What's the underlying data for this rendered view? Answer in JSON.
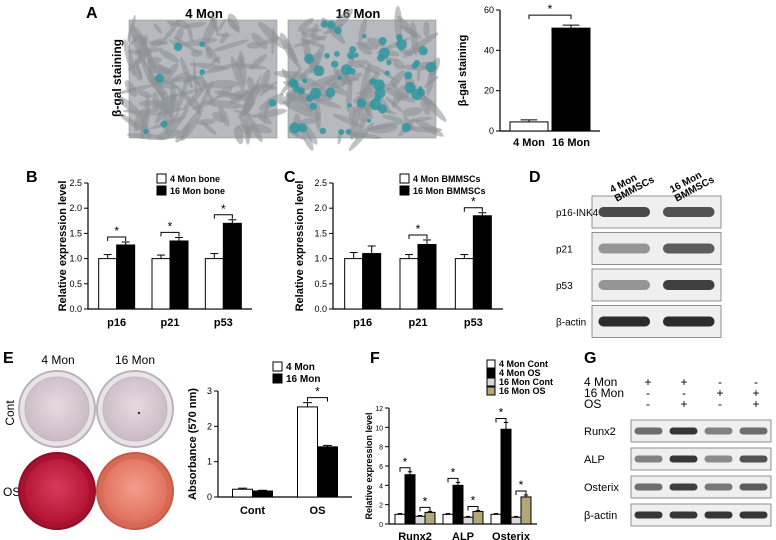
{
  "panels": {
    "A": {
      "letter": "A",
      "row_label": "β-gal staining",
      "image_labels": [
        "4 Mon",
        "16 Mon"
      ],
      "colors": {
        "micrograph_bg": "#b6b9bd",
        "cell": "#8d9296",
        "stain": "#2f97a0"
      }
    },
    "B": {
      "letter": "B"
    },
    "C": {
      "letter": "C"
    },
    "D": {
      "letter": "D",
      "lanes": [
        "4 Mon BMMSCs",
        "16 Mon BMMSCs"
      ],
      "blots": [
        {
          "label": "p16-INK4",
          "intensity": [
            0.75,
            0.7
          ]
        },
        {
          "label": "p21",
          "intensity": [
            0.35,
            0.65
          ]
        },
        {
          "label": "p53",
          "intensity": [
            0.35,
            0.8
          ]
        },
        {
          "label": "β-actin",
          "intensity": [
            0.9,
            0.9
          ]
        }
      ]
    },
    "E": {
      "letter": "E",
      "col_labels": [
        "4 Mon",
        "16 Mon"
      ],
      "row_labels": [
        "Cont",
        "OS"
      ],
      "colors": {
        "cont_well": "#d9ccd6",
        "os_4mon_well": "#c91e44",
        "os_16mon_well": "#e9856f"
      }
    },
    "F": {
      "letter": "F"
    },
    "G": {
      "letter": "G",
      "conditions": [
        {
          "label": "4 Mon",
          "signs": [
            "+",
            "+",
            "-",
            "-"
          ]
        },
        {
          "label": "16 Mon",
          "signs": [
            "-",
            "-",
            "+",
            "+"
          ]
        },
        {
          "label": "OS",
          "signs": [
            "-",
            "+",
            "-",
            "+"
          ]
        }
      ],
      "blots": [
        {
          "label": "Runx2",
          "intensity": [
            0.55,
            0.85,
            0.45,
            0.55
          ]
        },
        {
          "label": "ALP",
          "intensity": [
            0.45,
            0.85,
            0.4,
            0.7
          ]
        },
        {
          "label": "Osterix",
          "intensity": [
            0.55,
            0.8,
            0.5,
            0.65
          ]
        },
        {
          "label": "β-actin",
          "intensity": [
            0.85,
            0.85,
            0.85,
            0.85
          ]
        }
      ]
    }
  },
  "chart_data": [
    {
      "id": "A",
      "type": "bar",
      "categories": [
        "4 Mon",
        "16 Mon"
      ],
      "values": [
        4.5,
        51
      ],
      "errors": [
        1,
        1.5
      ],
      "colors": [
        "#ffffff",
        "#000000"
      ],
      "ylabel": "β-gal staining",
      "ylim": [
        0,
        60
      ],
      "yticks": [
        0,
        20,
        40,
        60
      ],
      "significance": [
        {
          "a": 0,
          "b": 1,
          "label": "*"
        }
      ]
    },
    {
      "id": "B",
      "type": "bar",
      "categories": [
        "p16",
        "p21",
        "p53"
      ],
      "series": [
        {
          "name": "4 Mon  bone",
          "color": "#ffffff",
          "values": [
            1.0,
            1.0,
            1.0
          ],
          "errors": [
            0.08,
            0.07,
            0.1
          ]
        },
        {
          "name": "16 Mon bone",
          "color": "#000000",
          "values": [
            1.27,
            1.35,
            1.7
          ],
          "errors": [
            0.06,
            0.07,
            0.07
          ]
        }
      ],
      "ylabel": "Relative expression level",
      "ylim": [
        0,
        2.5
      ],
      "yticks": [
        0.0,
        0.5,
        1.0,
        1.5,
        2.0,
        2.5
      ],
      "significance": [
        {
          "group": 0,
          "label": "*"
        },
        {
          "group": 1,
          "label": "*"
        },
        {
          "group": 2,
          "label": "*"
        }
      ]
    },
    {
      "id": "C",
      "type": "bar",
      "categories": [
        "p16",
        "p21",
        "p53"
      ],
      "series": [
        {
          "name": "4 Mon BMMSCs",
          "color": "#ffffff",
          "values": [
            1.0,
            1.0,
            1.0
          ],
          "errors": [
            0.12,
            0.08,
            0.08
          ]
        },
        {
          "name": "16 Mon BMMSCs",
          "color": "#000000",
          "values": [
            1.1,
            1.28,
            1.85
          ],
          "errors": [
            0.15,
            0.09,
            0.06
          ]
        }
      ],
      "ylabel": "Relative expression level",
      "ylim": [
        0,
        2.5
      ],
      "yticks": [
        0.0,
        0.5,
        1.0,
        1.5,
        2.0,
        2.5
      ],
      "significance": [
        {
          "group": 1,
          "label": "*"
        },
        {
          "group": 2,
          "label": "*"
        }
      ]
    },
    {
      "id": "E",
      "type": "bar",
      "categories": [
        "Cont",
        "OS"
      ],
      "series": [
        {
          "name": "4 Mon",
          "color": "#ffffff",
          "values": [
            0.22,
            2.55
          ],
          "errors": [
            0.03,
            0.12
          ]
        },
        {
          "name": "16 Mon",
          "color": "#000000",
          "values": [
            0.17,
            1.42
          ],
          "errors": [
            0.02,
            0.04
          ]
        }
      ],
      "ylabel": "Absorbance (570 nm)",
      "ylim": [
        0,
        3
      ],
      "yticks": [
        0,
        1,
        2,
        3
      ],
      "significance": [
        {
          "group": 1,
          "label": "*"
        }
      ]
    },
    {
      "id": "F",
      "type": "bar",
      "categories": [
        "Runx2",
        "ALP",
        "Osterix"
      ],
      "series": [
        {
          "name": "4 Mon Cont",
          "color": "#ffffff",
          "values": [
            1.0,
            1.0,
            1.0
          ],
          "errors": [
            0.08,
            0.08,
            0.08
          ]
        },
        {
          "name": "4 Mon OS",
          "color": "#000000",
          "values": [
            5.1,
            4.0,
            9.8
          ],
          "errors": [
            0.3,
            0.3,
            0.7
          ]
        },
        {
          "name": "16 Mon Cont",
          "color": "#d9d9d9",
          "values": [
            0.8,
            0.7,
            0.7
          ],
          "errors": [
            0.08,
            0.08,
            0.08
          ]
        },
        {
          "name": "16 Mon OS",
          "color": "#b1a77b",
          "values": [
            1.2,
            1.3,
            2.8
          ],
          "errors": [
            0.1,
            0.1,
            0.2
          ]
        }
      ],
      "ylabel": "Relative expression level",
      "ylim": [
        0,
        12
      ],
      "yticks": [
        0,
        2,
        4,
        6,
        8,
        10,
        12
      ],
      "significance": [
        {
          "group": 0,
          "a": 0,
          "b": 1,
          "label": "*"
        },
        {
          "group": 0,
          "a": 2,
          "b": 3,
          "label": "*"
        },
        {
          "group": 1,
          "a": 0,
          "b": 1,
          "label": "*"
        },
        {
          "group": 1,
          "a": 2,
          "b": 3,
          "label": "*"
        },
        {
          "group": 2,
          "a": 0,
          "b": 1,
          "label": "*"
        },
        {
          "group": 2,
          "a": 2,
          "b": 3,
          "label": "*"
        }
      ]
    }
  ]
}
